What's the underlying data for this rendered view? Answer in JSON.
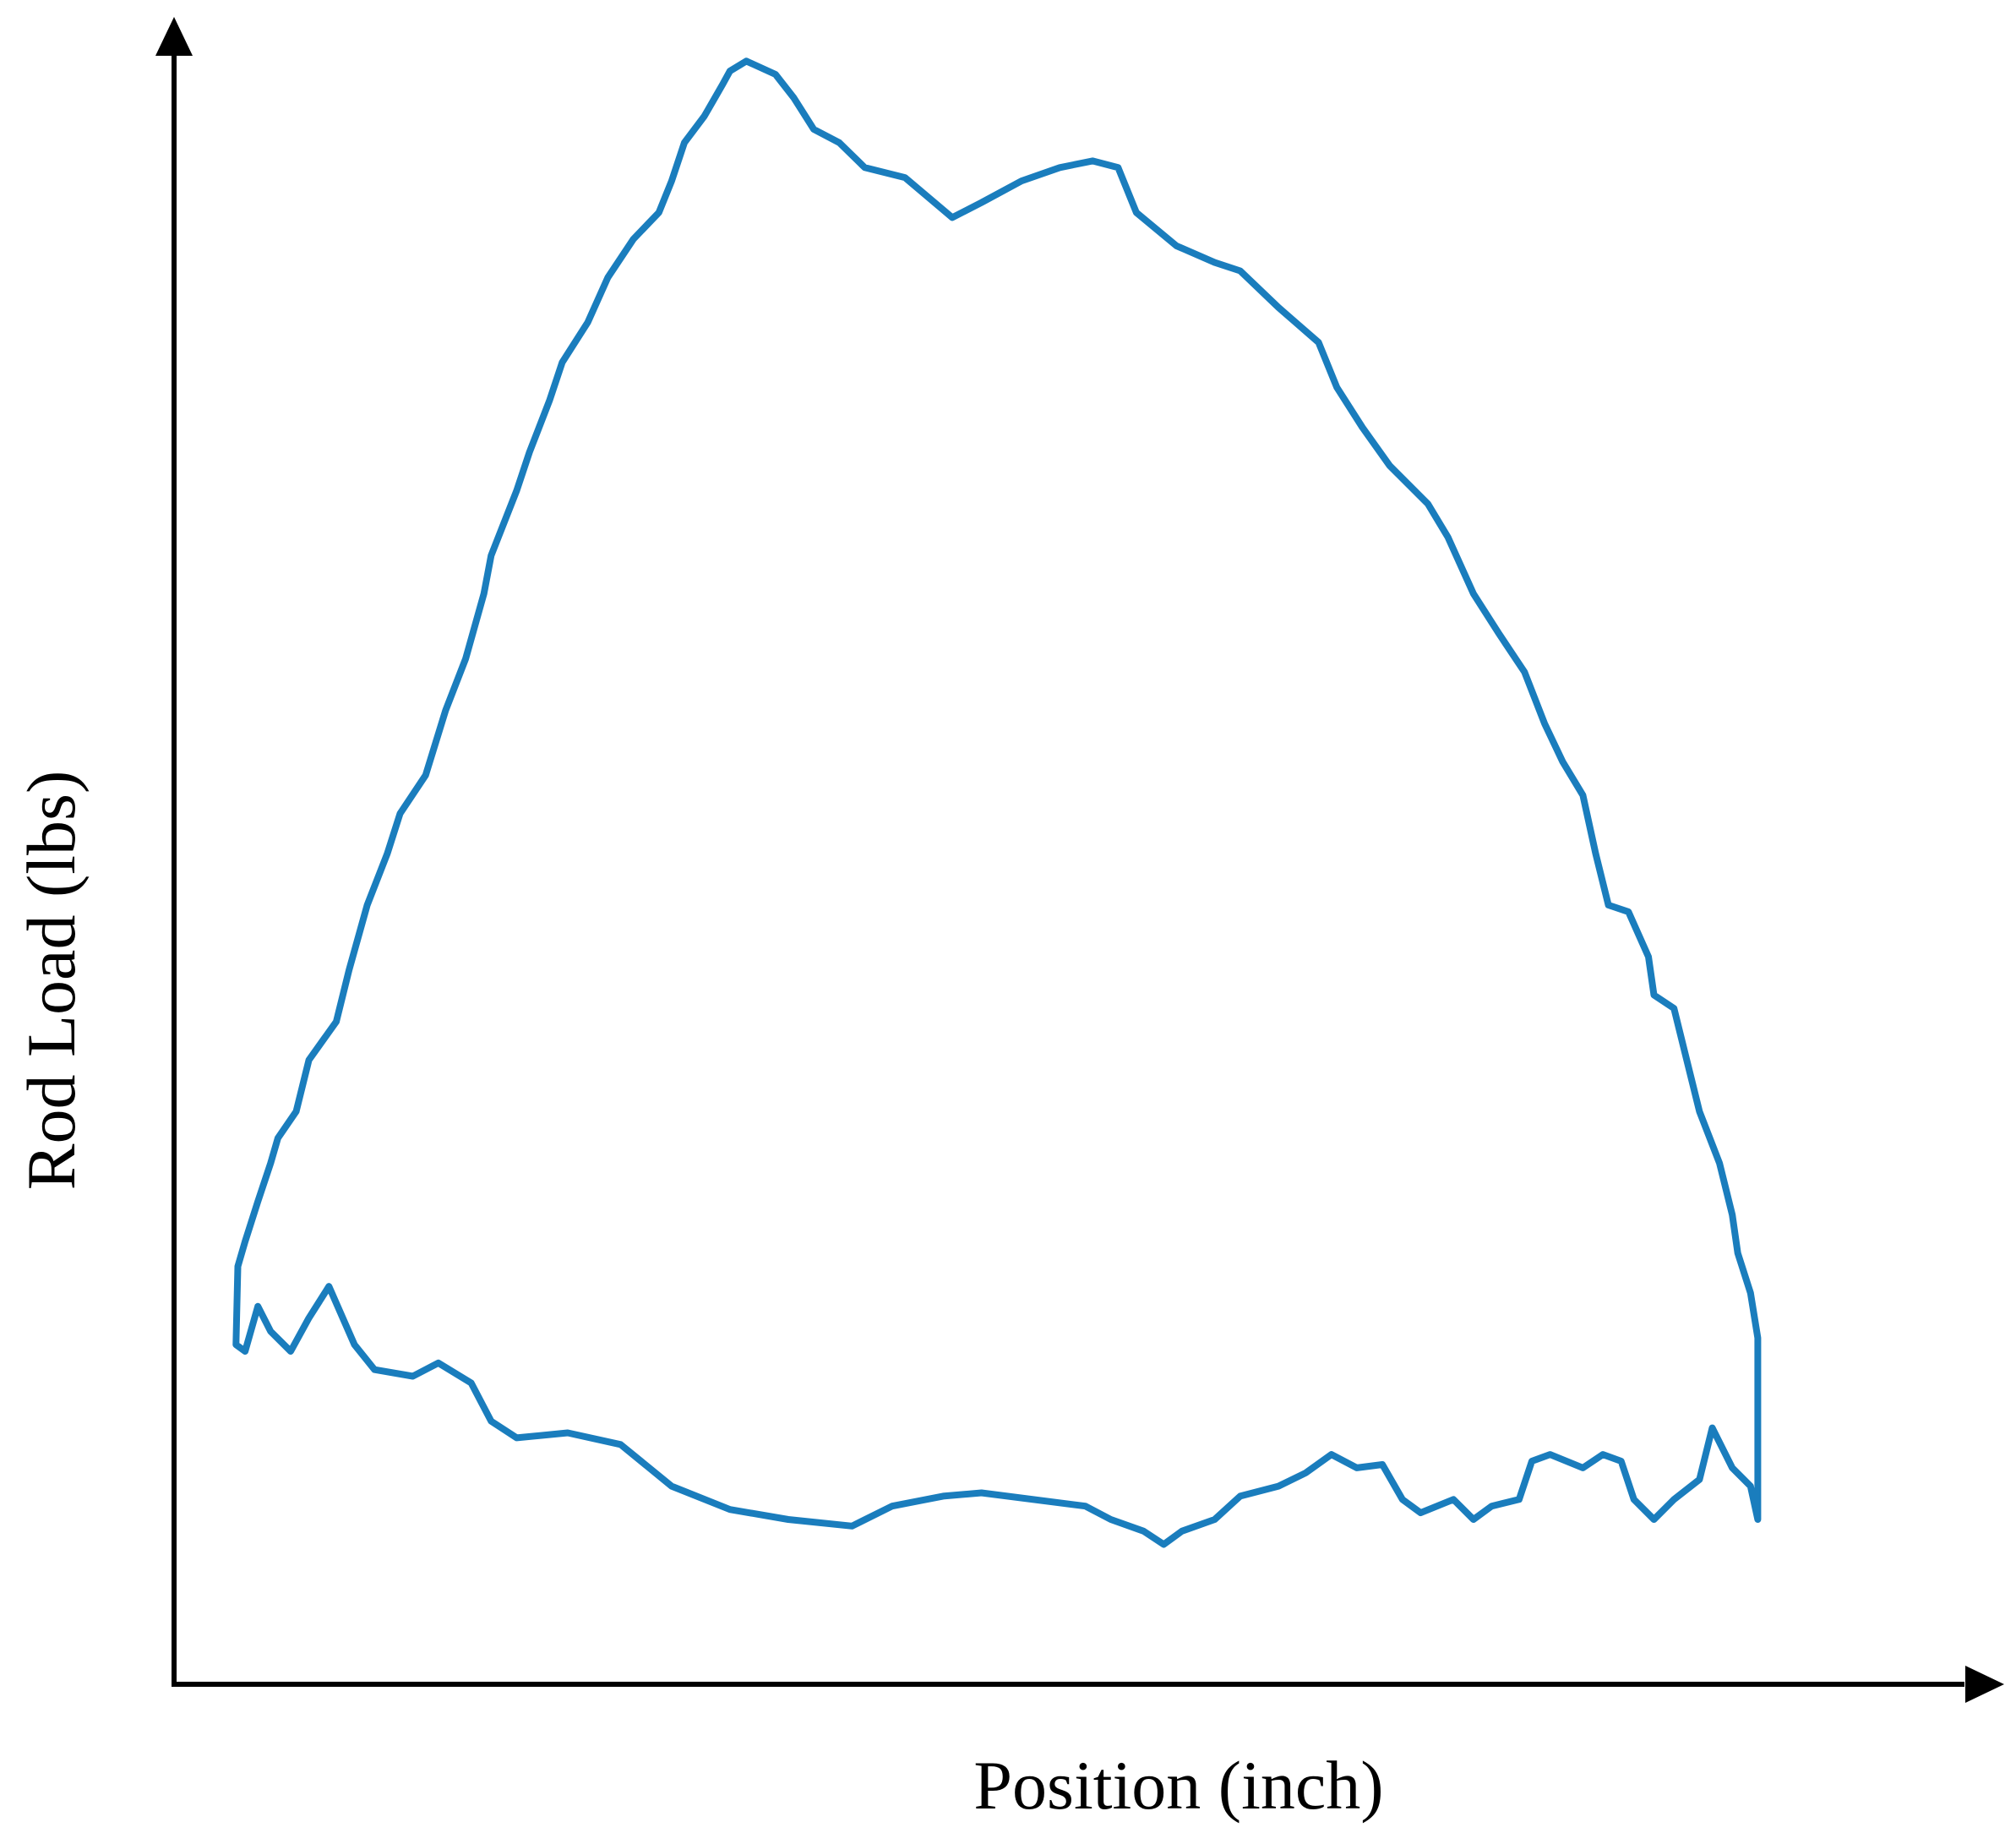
{
  "chart_data": {
    "type": "line",
    "x_label": "Position (inch)",
    "y_label": "Rod Load (lbs)",
    "color": "#1a7dbd",
    "xlim": [
      0,
      100
    ],
    "ylim": [
      0,
      100
    ],
    "x": [
      3.4,
      3.5,
      3.9,
      4.6,
      5.3,
      5.7,
      6.7,
      7.4,
      8.9,
      9.6,
      10.6,
      11.7,
      12.4,
      13.8,
      14.9,
      16.0,
      17.0,
      17.4,
      18.8,
      19.5,
      20.6,
      21.3,
      22.7,
      23.8,
      25.2,
      26.6,
      27.3,
      28.0,
      29.1,
      30.1,
      30.5,
      31.4,
      33.0,
      34.0,
      35.1,
      36.5,
      37.9,
      40.1,
      42.7,
      44.3,
      46.5,
      48.6,
      50.4,
      51.8,
      52.8,
      55.0,
      57.1,
      58.5,
      60.6,
      62.8,
      63.8,
      65.2,
      66.7,
      68.8,
      69.9,
      71.3,
      72.7,
      74.1,
      75.2,
      76.2,
      77.3,
      78.0,
      78.7,
      79.8,
      80.9,
      81.2,
      82.3,
      83.0,
      83.7,
      84.8,
      85.5,
      85.8,
      86.5,
      86.9,
      86.9,
      86.5,
      85.5,
      84.4,
      83.7,
      82.3,
      81.2,
      80.1,
      79.4,
      78.4,
      77.3,
      75.5,
      74.5,
      73.8,
      72.3,
      71.3,
      70.2,
      68.4,
      67.4,
      66.3,
      64.9,
      63.5,
      62.1,
      60.6,
      58.5,
      57.1,
      55.3,
      54.3,
      53.2,
      51.4,
      50.0,
      44.3,
      42.2,
      39.4,
      37.2,
      33.7,
      30.5,
      27.3,
      24.5,
      21.6,
      18.8,
      17.4,
      16.3,
      14.5,
      13.1,
      11.0,
      9.9,
      8.5,
      7.4,
      6.4,
      5.3,
      4.6,
      3.9,
      3.4
    ],
    "values": [
      20.4,
      25.1,
      26.6,
      29.0,
      31.3,
      32.8,
      34.4,
      37.5,
      39.8,
      42.9,
      46.8,
      49.9,
      52.3,
      54.6,
      58.5,
      61.6,
      65.5,
      67.8,
      71.7,
      74.0,
      77.1,
      79.4,
      81.8,
      84.5,
      86.8,
      88.4,
      90.3,
      92.6,
      94.2,
      96.1,
      96.9,
      97.5,
      96.7,
      95.3,
      93.4,
      92.6,
      91.1,
      90.5,
      88.1,
      89.0,
      90.3,
      91.1,
      91.5,
      91.1,
      88.4,
      86.4,
      85.4,
      84.9,
      82.7,
      80.6,
      77.9,
      75.5,
      73.2,
      70.9,
      68.9,
      65.5,
      63.1,
      60.8,
      57.7,
      55.4,
      53.4,
      49.9,
      46.8,
      46.4,
      43.7,
      41.4,
      40.6,
      37.5,
      34.4,
      31.3,
      28.2,
      25.9,
      23.5,
      20.8,
      9.9,
      11.9,
      13.0,
      15.4,
      12.3,
      11.1,
      9.9,
      11.1,
      13.4,
      13.8,
      13.0,
      13.8,
      13.4,
      11.1,
      10.7,
      9.9,
      11.1,
      10.3,
      11.1,
      13.2,
      13.0,
      13.8,
      12.7,
      11.9,
      11.3,
      9.9,
      9.2,
      8.4,
      9.2,
      9.9,
      10.7,
      11.5,
      11.3,
      10.7,
      9.5,
      9.9,
      10.5,
      11.9,
      14.4,
      15.1,
      14.8,
      15.8,
      18.1,
      19.3,
      18.5,
      18.9,
      20.4,
      23.9,
      22.0,
      20.0,
      21.2,
      22.7,
      20.0,
      20.4
    ]
  }
}
